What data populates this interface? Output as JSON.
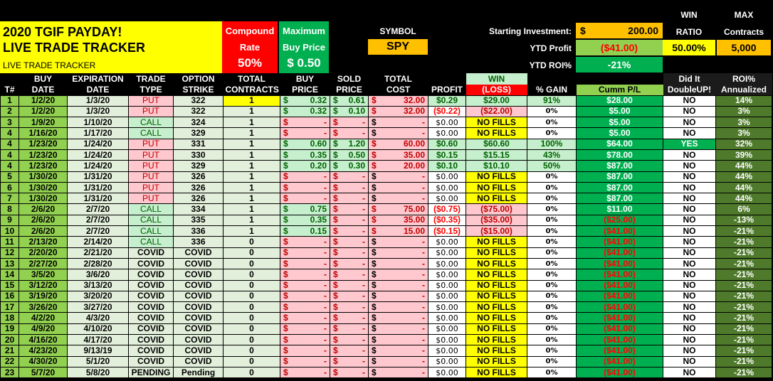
{
  "title": {
    "line1": "2020  TGIF PAYDAY!",
    "line2": "LIVE TRADE TRACKER",
    "line3": "LIVE TRADE TRACKER"
  },
  "compound": {
    "l1": "Compound",
    "l2": "Rate",
    "value": "50%"
  },
  "max_buy": {
    "l1": "Maximum",
    "l2": "Buy Price",
    "value": "$ 0.50"
  },
  "symbol": {
    "label": "SYMBOL",
    "value": "SPY"
  },
  "summary": {
    "starting_label": "Starting Investment:",
    "starting_currency": "$",
    "starting_value": "200.00",
    "ytd_profit_label": "YTD Profit",
    "ytd_profit": "($41.00)",
    "ytd_roi_label": "YTD ROI%",
    "ytd_roi": "-21%",
    "win_label1": "WIN",
    "win_label2": "RATIO",
    "win_ratio": "50.00%",
    "max_label1": "MAX",
    "max_label2": "Contracts",
    "max_contracts": "5,000"
  },
  "colors": {
    "yellow": "#ffff00",
    "red": "#ff0000",
    "green": "#00b050",
    "orange": "#ffc000",
    "light_green": "#c6efce",
    "pink": "#ffc7ce",
    "olive": "#4f7a2c"
  },
  "headers": {
    "top": [
      "",
      "BUY",
      "EXPIRATION",
      "TRADE",
      "OPTION",
      "TOTAL",
      "BUY",
      "SOLD",
      "TOTAL",
      "",
      "WIN",
      "",
      "",
      "Did It",
      "ROI%"
    ],
    "bottom": [
      "T#",
      "DATE",
      "DATE",
      "TYPE",
      "STRIKE",
      "CONTRACTS",
      "PRICE",
      "PRICE",
      "COST",
      "PROFIT",
      "(LOSS)",
      "% GAIN",
      "Cumm P/L",
      "DoubleUP!",
      "Annualized"
    ]
  },
  "rows": [
    [
      "1",
      "1/2/20",
      "1/3/20",
      "PUT",
      "322",
      "1",
      "0.32",
      "0.61",
      "32.00",
      "$0.29",
      "$29.00",
      "91%",
      "$28.00",
      "NO",
      "14%"
    ],
    [
      "2",
      "1/2/20",
      "1/3/20",
      "PUT",
      "322",
      "1",
      "0.32",
      "0.10",
      "32.00",
      "($0.22)",
      "($22.00)",
      "0%",
      "$5.00",
      "NO",
      "3%"
    ],
    [
      "3",
      "1/9/20",
      "1/10/20",
      "CALL",
      "324",
      "1",
      "-",
      "-",
      "-",
      "$0.00",
      "NO FILLS",
      "0%",
      "$5.00",
      "NO",
      "3%"
    ],
    [
      "4",
      "1/16/20",
      "1/17/20",
      "CALL",
      "329",
      "1",
      "-",
      "-",
      "-",
      "$0.00",
      "NO FILLS",
      "0%",
      "$5.00",
      "NO",
      "3%"
    ],
    [
      "4",
      "1/23/20",
      "1/24/20",
      "PUT",
      "331",
      "1",
      "0.60",
      "1.20",
      "60.00",
      "$0.60",
      "$60.60",
      "100%",
      "$64.00",
      "YES",
      "32%"
    ],
    [
      "4",
      "1/23/20",
      "1/24/20",
      "PUT",
      "330",
      "1",
      "0.35",
      "0.50",
      "35.00",
      "$0.15",
      "$15.15",
      "43%",
      "$78.00",
      "NO",
      "39%"
    ],
    [
      "4",
      "1/23/20",
      "1/24/20",
      "PUT",
      "329",
      "1",
      "0.20",
      "0.30",
      "20.00",
      "$0.10",
      "$10.10",
      "50%",
      "$87.00",
      "NO",
      "44%"
    ],
    [
      "5",
      "1/30/20",
      "1/31/20",
      "PUT",
      "326",
      "1",
      "-",
      "-",
      "-",
      "$0.00",
      "NO FILLS",
      "0%",
      "$87.00",
      "NO",
      "44%"
    ],
    [
      "6",
      "1/30/20",
      "1/31/20",
      "PUT",
      "326",
      "1",
      "-",
      "-",
      "-",
      "$0.00",
      "NO FILLS",
      "0%",
      "$87.00",
      "NO",
      "44%"
    ],
    [
      "7",
      "1/30/20",
      "1/31/20",
      "PUT",
      "326",
      "1",
      "-",
      "-",
      "-",
      "$0.00",
      "NO FILLS",
      "0%",
      "$87.00",
      "NO",
      "44%"
    ],
    [
      "8",
      "2/6/20",
      "2/7/20",
      "CALL",
      "334",
      "1",
      "0.75",
      "-",
      "75.00",
      "($0.75)",
      "($75.00)",
      "0%",
      "$11.00",
      "NO",
      "6%"
    ],
    [
      "9",
      "2/6/20",
      "2/7/20",
      "CALL",
      "335",
      "1",
      "0.35",
      "-",
      "35.00",
      "($0.35)",
      "($35.00)",
      "0%",
      "($25.00)",
      "NO",
      "-13%"
    ],
    [
      "10",
      "2/6/20",
      "2/7/20",
      "CALL",
      "336",
      "1",
      "0.15",
      "-",
      "15.00",
      "($0.15)",
      "($15.00)",
      "0%",
      "($41.00)",
      "NO",
      "-21%"
    ],
    [
      "11",
      "2/13/20",
      "2/14/20",
      "CALL",
      "336",
      "0",
      "-",
      "-",
      "-",
      "$0.00",
      "NO FILLS",
      "0%",
      "($41.00)",
      "NO",
      "-21%"
    ],
    [
      "12",
      "2/20/20",
      "2/21/20",
      "COVID",
      "COVID",
      "0",
      "-",
      "-",
      "-",
      "$0.00",
      "NO FILLS",
      "0%",
      "($41.00)",
      "NO",
      "-21%"
    ],
    [
      "13",
      "2/27/20",
      "2/28/20",
      "COVID",
      "COVID",
      "0",
      "-",
      "-",
      "-",
      "$0.00",
      "NO FILLS",
      "0%",
      "($41.00)",
      "NO",
      "-21%"
    ],
    [
      "14",
      "3/5/20",
      "3/6/20",
      "COVID",
      "COVID",
      "0",
      "-",
      "-",
      "-",
      "$0.00",
      "NO FILLS",
      "0%",
      "($41.00)",
      "NO",
      "-21%"
    ],
    [
      "15",
      "3/12/20",
      "3/13/20",
      "COVID",
      "COVID",
      "0",
      "-",
      "-",
      "-",
      "$0.00",
      "NO FILLS",
      "0%",
      "($41.00)",
      "NO",
      "-21%"
    ],
    [
      "16",
      "3/19/20",
      "3/20/20",
      "COVID",
      "COVID",
      "0",
      "-",
      "-",
      "-",
      "$0.00",
      "NO FILLS",
      "0%",
      "($41.00)",
      "NO",
      "-21%"
    ],
    [
      "17",
      "3/26/20",
      "3/27/20",
      "COVID",
      "COVID",
      "0",
      "-",
      "-",
      "-",
      "$0.00",
      "NO FILLS",
      "0%",
      "($41.00)",
      "NO",
      "-21%"
    ],
    [
      "18",
      "4/2/20",
      "4/3/20",
      "COVID",
      "COVID",
      "0",
      "-",
      "-",
      "-",
      "$0.00",
      "NO FILLS",
      "0%",
      "($41.00)",
      "NO",
      "-21%"
    ],
    [
      "19",
      "4/9/20",
      "4/10/20",
      "COVID",
      "COVID",
      "0",
      "-",
      "-",
      "-",
      "$0.00",
      "NO FILLS",
      "0%",
      "($41.00)",
      "NO",
      "-21%"
    ],
    [
      "20",
      "4/16/20",
      "4/17/20",
      "COVID",
      "COVID",
      "0",
      "-",
      "-",
      "-",
      "$0.00",
      "NO FILLS",
      "0%",
      "($41.00)",
      "NO",
      "-21%"
    ],
    [
      "21",
      "4/23/20",
      "9/13/19",
      "COVID",
      "COVID",
      "0",
      "-",
      "-",
      "-",
      "$0.00",
      "NO FILLS",
      "0%",
      "($41.00)",
      "NO",
      "-21%"
    ],
    [
      "22",
      "4/30/20",
      "5/1/20",
      "COVID",
      "COVID",
      "0",
      "-",
      "-",
      "-",
      "$0.00",
      "NO FILLS",
      "0%",
      "($41.00)",
      "NO",
      "-21%"
    ],
    [
      "23",
      "5/7/20",
      "5/8/20",
      "PENDING",
      "Pending",
      "0",
      "-",
      "-",
      "-",
      "$0.00",
      "NO FILLS",
      "0%",
      "($41.00)",
      "NO",
      "-21%"
    ]
  ],
  "currency_symbol": "$"
}
